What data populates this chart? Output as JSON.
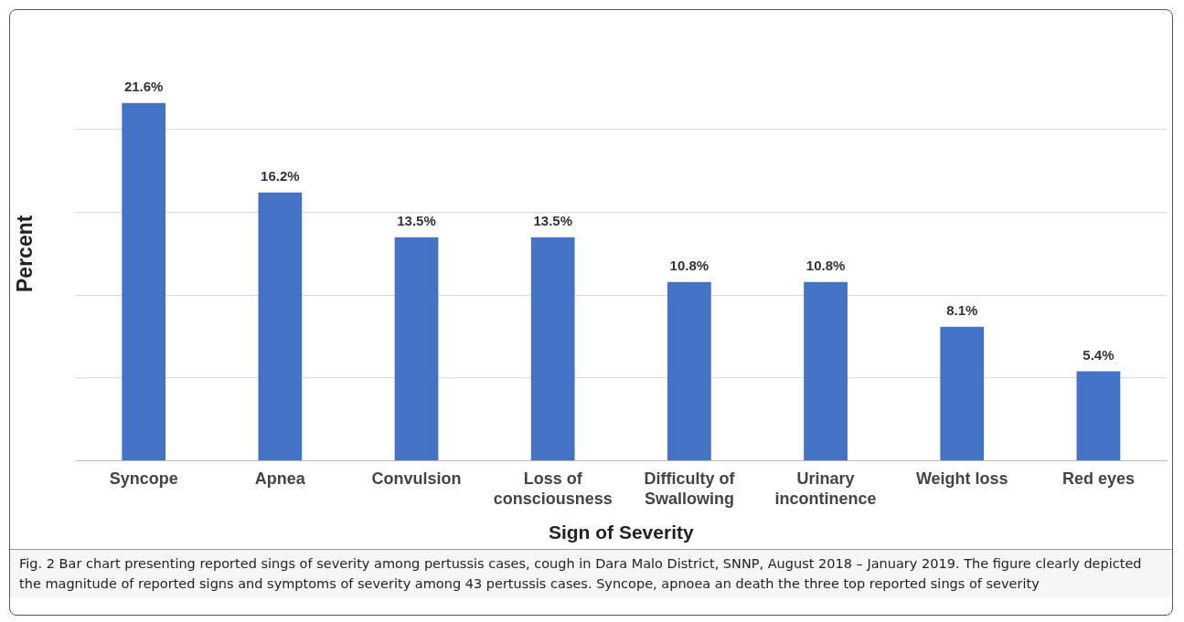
{
  "chart_data": {
    "type": "bar",
    "xlabel": "Sign of Severity",
    "ylabel": "Percent",
    "categories": [
      "Syncope",
      "Apnea",
      "Convulsion",
      "Loss of consciousness",
      "Difficulty of Swallowing",
      "Urinary incontinence",
      "Weight loss",
      "Red eyes"
    ],
    "values": [
      21.6,
      16.2,
      13.5,
      13.5,
      10.8,
      10.8,
      8.1,
      5.4
    ],
    "value_labels": [
      "21.6%",
      "16.2%",
      "13.5%",
      "13.5%",
      "10.8%",
      "10.8%",
      "8.1%",
      "5.4%"
    ],
    "color": "#4472c4",
    "yticks": [
      {
        "value": 0,
        "label": null
      },
      {
        "value": 5,
        "label": null
      },
      {
        "value": 10,
        "label": null
      },
      {
        "value": 15,
        "label": null
      },
      {
        "value": 20,
        "label": null
      }
    ],
    "grid": "y",
    "tick_labels": "x",
    "legend": false,
    "annotations": [
      "Fig. 2 Bar chart presenting reported sings of severity among pertussis cases, cough in Dara Malo District, SNNP, August 2018 – January 2019. The figure clearly depicted the magnitude of reported signs and symptoms of severity among 43 pertussis cases. Syncope, apnoea an death the three top reported sings of severity"
    ]
  }
}
